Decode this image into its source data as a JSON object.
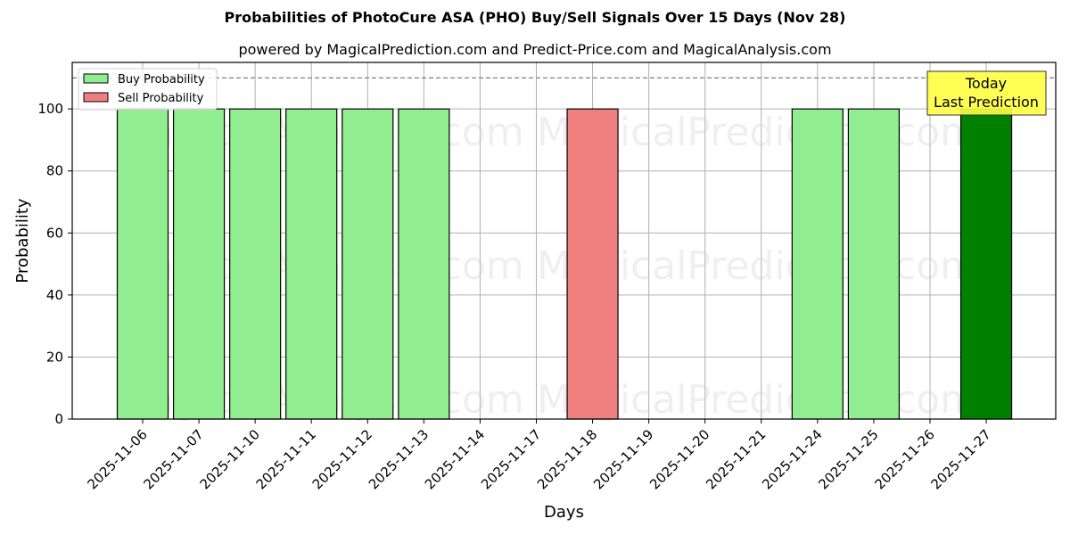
{
  "title": "Probabilities of PhotoCure ASA (PHO) Buy/Sell Signals Over 15 Days (Nov 28)",
  "subtitle": "powered by MagicalPrediction.com and Predict-Price.com and MagicalAnalysis.com",
  "annotation": {
    "line1": "Today",
    "line2": "Last Prediction",
    "bg": "#ffff44"
  },
  "watermarks": [
    "MagicalAnalysis.com",
    "MagicalPrediction.com"
  ],
  "legend": [
    {
      "label": "Buy Probability",
      "color": "#90ee90"
    },
    {
      "label": "Sell Probability",
      "color": "#f08080"
    }
  ],
  "colors": {
    "buy": "#90ee90",
    "sell": "#f08080",
    "today": "#008000",
    "grid": "#b0b0b0",
    "threshold": "#808080"
  },
  "chart_data": {
    "type": "bar",
    "title": "Probabilities of PhotoCure ASA (PHO) Buy/Sell Signals Over 15 Days (Nov 28)",
    "subtitle": "powered by MagicalPrediction.com and Predict-Price.com and MagicalAnalysis.com",
    "xlabel": "Days",
    "ylabel": "Probability",
    "ylim": [
      0,
      115
    ],
    "yticks": [
      0,
      20,
      40,
      60,
      80,
      100
    ],
    "grid": true,
    "legend_position": "upper left",
    "threshold_line": 110,
    "categories": [
      "2025-11-06",
      "2025-11-07",
      "2025-11-10",
      "2025-11-11",
      "2025-11-12",
      "2025-11-13",
      "2025-11-14",
      "2025-11-17",
      "2025-11-18",
      "2025-11-19",
      "2025-11-20",
      "2025-11-21",
      "2025-11-24",
      "2025-11-25",
      "2025-11-26",
      "2025-11-27"
    ],
    "series": [
      {
        "name": "Buy Probability",
        "values": [
          100,
          100,
          100,
          100,
          100,
          100,
          0,
          0,
          0,
          0,
          0,
          0,
          100,
          100,
          0,
          100
        ]
      },
      {
        "name": "Sell Probability",
        "values": [
          0,
          0,
          0,
          0,
          0,
          0,
          0,
          0,
          100,
          0,
          0,
          0,
          0,
          0,
          0,
          0
        ]
      }
    ],
    "bars": [
      {
        "date": "2025-11-06",
        "type": "buy",
        "value": 100
      },
      {
        "date": "2025-11-07",
        "type": "buy",
        "value": 100
      },
      {
        "date": "2025-11-10",
        "type": "buy",
        "value": 100
      },
      {
        "date": "2025-11-11",
        "type": "buy",
        "value": 100
      },
      {
        "date": "2025-11-12",
        "type": "buy",
        "value": 100
      },
      {
        "date": "2025-11-13",
        "type": "buy",
        "value": 100
      },
      {
        "date": "2025-11-18",
        "type": "sell",
        "value": 100
      },
      {
        "date": "2025-11-24",
        "type": "buy",
        "value": 100
      },
      {
        "date": "2025-11-25",
        "type": "buy",
        "value": 100
      },
      {
        "date": "2025-11-27",
        "type": "today",
        "value": 100
      }
    ],
    "annotations": [
      "Today",
      "Last Prediction"
    ]
  }
}
